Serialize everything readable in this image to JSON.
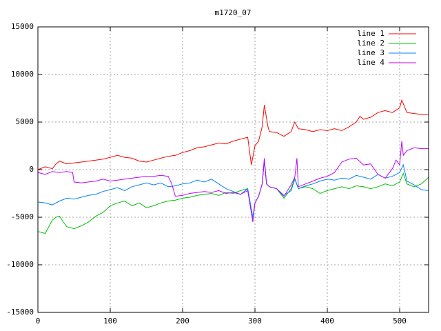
{
  "chart_data": {
    "type": "line",
    "title": "m1720_07",
    "xlim": [
      0,
      540
    ],
    "ylim": [
      -15000,
      15000
    ],
    "xticks": [
      0,
      100,
      200,
      300,
      400,
      500
    ],
    "yticks": [
      -15000,
      -10000,
      -5000,
      0,
      5000,
      10000,
      15000
    ],
    "grid": true,
    "legend": "top-right",
    "series": [
      {
        "name": "line 1",
        "color": "#ff0000",
        "x": [
          0,
          10,
          20,
          25,
          30,
          40,
          50,
          60,
          70,
          80,
          90,
          100,
          110,
          120,
          130,
          140,
          150,
          160,
          170,
          180,
          190,
          200,
          210,
          220,
          230,
          240,
          250,
          260,
          270,
          280,
          290,
          295,
          300,
          305,
          310,
          313,
          318,
          320,
          330,
          340,
          350,
          355,
          360,
          370,
          380,
          390,
          400,
          410,
          420,
          430,
          440,
          445,
          450,
          460,
          470,
          480,
          490,
          500,
          503,
          510,
          520,
          530,
          540
        ],
        "values": [
          0,
          300,
          100,
          600,
          900,
          600,
          700,
          800,
          900,
          1000,
          1100,
          1300,
          1500,
          1300,
          1200,
          900,
          800,
          1000,
          1200,
          1400,
          1500,
          1800,
          2000,
          2300,
          2400,
          2600,
          2800,
          2700,
          3000,
          3200,
          3400,
          500,
          2500,
          3000,
          4500,
          6800,
          4500,
          4000,
          3900,
          3500,
          4000,
          5000,
          4300,
          4200,
          4000,
          4200,
          4100,
          4300,
          4100,
          4500,
          5000,
          5600,
          5300,
          5500,
          6000,
          6200,
          6000,
          6500,
          7300,
          6000,
          5900,
          5800,
          5800
        ]
      },
      {
        "name": "line 2",
        "color": "#00c000",
        "x": [
          0,
          10,
          15,
          20,
          25,
          30,
          35,
          40,
          50,
          60,
          70,
          80,
          90,
          100,
          110,
          120,
          130,
          140,
          150,
          160,
          170,
          180,
          190,
          200,
          210,
          220,
          230,
          240,
          250,
          260,
          270,
          280,
          290,
          297,
          300,
          305,
          310,
          313,
          316,
          320,
          330,
          340,
          350,
          355,
          360,
          370,
          380,
          390,
          400,
          410,
          420,
          430,
          440,
          450,
          460,
          470,
          480,
          490,
          500,
          505,
          510,
          520,
          530,
          540
        ],
        "values": [
          -6500,
          -6700,
          -6000,
          -5300,
          -5000,
          -4900,
          -5500,
          -6000,
          -6200,
          -5900,
          -5500,
          -4900,
          -4500,
          -3800,
          -3500,
          -3300,
          -3800,
          -3500,
          -4000,
          -3800,
          -3500,
          -3300,
          -3200,
          -3000,
          -2900,
          -2700,
          -2600,
          -2500,
          -2700,
          -2400,
          -2500,
          -2200,
          -2000,
          -5200,
          -3500,
          -2800,
          -1500,
          1000,
          -1500,
          -1800,
          -2000,
          -3000,
          -2000,
          -900,
          -2000,
          -1800,
          -2000,
          -2500,
          -2200,
          -2000,
          -1800,
          -2000,
          -1700,
          -1800,
          -2000,
          -1800,
          -1500,
          -1700,
          -1300,
          -400,
          -1500,
          -1800,
          -1500,
          -800
        ]
      },
      {
        "name": "line 3",
        "color": "#0080ff",
        "x": [
          0,
          10,
          20,
          30,
          40,
          50,
          60,
          70,
          80,
          90,
          100,
          110,
          120,
          130,
          140,
          150,
          160,
          170,
          180,
          190,
          200,
          210,
          220,
          230,
          240,
          250,
          260,
          270,
          280,
          290,
          297,
          300,
          305,
          310,
          313,
          316,
          320,
          330,
          340,
          350,
          355,
          360,
          370,
          380,
          390,
          400,
          410,
          420,
          430,
          440,
          450,
          460,
          470,
          480,
          490,
          500,
          505,
          510,
          520,
          530,
          540
        ],
        "values": [
          -3400,
          -3500,
          -3700,
          -3300,
          -3000,
          -3100,
          -2900,
          -2700,
          -2600,
          -2300,
          -2100,
          -1900,
          -2200,
          -1800,
          -1600,
          -1400,
          -1600,
          -1400,
          -1800,
          -1700,
          -1500,
          -1400,
          -1100,
          -1300,
          -1000,
          -1500,
          -2000,
          -2300,
          -2600,
          -2000,
          -5000,
          -3500,
          -2800,
          -1500,
          900,
          -1500,
          -1800,
          -2000,
          -2700,
          -2200,
          -1000,
          -2000,
          -1700,
          -1500,
          -1200,
          -1000,
          -1100,
          -900,
          -1000,
          -600,
          -800,
          -1000,
          -500,
          -900,
          -700,
          -300,
          500,
          -1200,
          -1600,
          -2100,
          -2200
        ]
      },
      {
        "name": "line 4",
        "color": "#c000ff",
        "x": [
          0,
          10,
          20,
          30,
          40,
          48,
          50,
          60,
          70,
          80,
          90,
          100,
          110,
          120,
          130,
          140,
          150,
          160,
          170,
          180,
          185,
          190,
          200,
          210,
          220,
          230,
          240,
          250,
          260,
          270,
          280,
          290,
          297,
          300,
          305,
          310,
          313,
          316,
          320,
          330,
          340,
          350,
          355,
          358,
          360,
          370,
          380,
          390,
          400,
          410,
          420,
          430,
          440,
          450,
          460,
          470,
          480,
          490,
          495,
          500,
          503,
          505,
          510,
          520,
          530,
          540
        ],
        "values": [
          -300,
          -500,
          -200,
          -300,
          -200,
          -300,
          -1300,
          -1400,
          -1300,
          -1200,
          -1000,
          -1200,
          -1100,
          -1000,
          -900,
          -800,
          -700,
          -700,
          -600,
          -700,
          -1500,
          -2800,
          -2700,
          -2500,
          -2400,
          -2300,
          -2400,
          -2200,
          -2500,
          -2400,
          -2600,
          -2200,
          -5500,
          -3500,
          -2800,
          -1500,
          1200,
          -1500,
          -1800,
          -2000,
          -2800,
          -1600,
          -800,
          1200,
          -1800,
          -1500,
          -1200,
          -900,
          -700,
          -300,
          800,
          1100,
          1200,
          500,
          600,
          -500,
          -900,
          100,
          1000,
          500,
          3000,
          1500,
          2000,
          2300,
          2200,
          2200
        ]
      }
    ]
  }
}
